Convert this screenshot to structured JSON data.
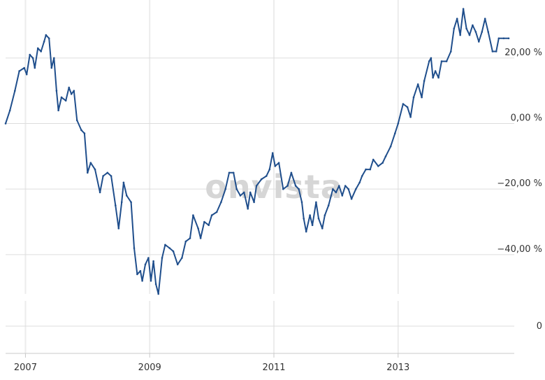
{
  "watermark": "onvista",
  "colors": {
    "line": "#1f4e8c",
    "grid": "#dddddd",
    "vgrid": "#ececec",
    "text": "#333333",
    "watermark": "#d6d6d6",
    "axis": "#c8c8c8"
  },
  "chart_data": [
    {
      "type": "line",
      "title": "",
      "xlabel": "",
      "ylabel": "",
      "xlim": [
        2006.68,
        2014.87
      ],
      "ylim": [
        -52,
        36
      ],
      "y_axis_position": "right",
      "grid": true,
      "x_ticks": [
        {
          "x": 2007,
          "label": "2007"
        },
        {
          "x": 2009,
          "label": "2009"
        },
        {
          "x": 2011,
          "label": "2011"
        },
        {
          "x": 2013,
          "label": "2013"
        }
      ],
      "y_ticks": [
        {
          "y": 20,
          "label": "20,00 %"
        },
        {
          "y": 0,
          "label": "0,00 %"
        },
        {
          "y": -20,
          "label": "−20,00 %"
        },
        {
          "y": -40,
          "label": "−40,00 %"
        }
      ],
      "series": [
        {
          "values": [
            [
              2006.68,
              0
            ],
            [
              2006.75,
              4
            ],
            [
              2006.83,
              10
            ],
            [
              2006.9,
              16
            ],
            [
              2006.98,
              17
            ],
            [
              2007.02,
              15
            ],
            [
              2007.07,
              21
            ],
            [
              2007.12,
              20
            ],
            [
              2007.15,
              17
            ],
            [
              2007.2,
              23
            ],
            [
              2007.25,
              22
            ],
            [
              2007.3,
              25
            ],
            [
              2007.33,
              27
            ],
            [
              2007.38,
              26
            ],
            [
              2007.42,
              17
            ],
            [
              2007.46,
              20
            ],
            [
              2007.5,
              10
            ],
            [
              2007.53,
              4
            ],
            [
              2007.58,
              8
            ],
            [
              2007.65,
              7
            ],
            [
              2007.7,
              11
            ],
            [
              2007.74,
              9
            ],
            [
              2007.78,
              10
            ],
            [
              2007.83,
              1
            ],
            [
              2007.9,
              -2
            ],
            [
              2007.95,
              -3
            ],
            [
              2008.0,
              -15
            ],
            [
              2008.05,
              -12
            ],
            [
              2008.12,
              -14
            ],
            [
              2008.2,
              -21
            ],
            [
              2008.25,
              -16
            ],
            [
              2008.32,
              -15
            ],
            [
              2008.38,
              -16
            ],
            [
              2008.45,
              -25
            ],
            [
              2008.5,
              -32
            ],
            [
              2008.55,
              -24
            ],
            [
              2008.58,
              -18
            ],
            [
              2008.63,
              -22
            ],
            [
              2008.7,
              -24
            ],
            [
              2008.75,
              -38
            ],
            [
              2008.8,
              -46
            ],
            [
              2008.85,
              -45
            ],
            [
              2008.88,
              -48
            ],
            [
              2008.93,
              -43
            ],
            [
              2008.98,
              -41
            ],
            [
              2009.02,
              -48
            ],
            [
              2009.06,
              -42
            ],
            [
              2009.1,
              -49
            ],
            [
              2009.14,
              -52
            ],
            [
              2009.2,
              -41
            ],
            [
              2009.25,
              -37
            ],
            [
              2009.32,
              -38
            ],
            [
              2009.38,
              -39
            ],
            [
              2009.45,
              -43
            ],
            [
              2009.52,
              -41
            ],
            [
              2009.58,
              -36
            ],
            [
              2009.65,
              -35
            ],
            [
              2009.7,
              -28
            ],
            [
              2009.78,
              -32
            ],
            [
              2009.82,
              -35
            ],
            [
              2009.88,
              -30
            ],
            [
              2009.95,
              -31
            ],
            [
              2010.0,
              -28
            ],
            [
              2010.08,
              -27
            ],
            [
              2010.15,
              -24
            ],
            [
              2010.22,
              -20
            ],
            [
              2010.28,
              -15
            ],
            [
              2010.35,
              -15
            ],
            [
              2010.4,
              -20
            ],
            [
              2010.46,
              -22
            ],
            [
              2010.52,
              -21
            ],
            [
              2010.58,
              -26
            ],
            [
              2010.62,
              -21
            ],
            [
              2010.68,
              -24
            ],
            [
              2010.72,
              -19
            ],
            [
              2010.8,
              -17
            ],
            [
              2010.88,
              -16
            ],
            [
              2010.93,
              -14
            ],
            [
              2010.98,
              -9
            ],
            [
              2011.02,
              -13
            ],
            [
              2011.08,
              -12
            ],
            [
              2011.15,
              -20
            ],
            [
              2011.22,
              -19
            ],
            [
              2011.28,
              -15
            ],
            [
              2011.35,
              -19
            ],
            [
              2011.4,
              -20
            ],
            [
              2011.45,
              -24
            ],
            [
              2011.48,
              -29
            ],
            [
              2011.52,
              -33
            ],
            [
              2011.58,
              -28
            ],
            [
              2011.62,
              -31
            ],
            [
              2011.68,
              -24
            ],
            [
              2011.72,
              -29
            ],
            [
              2011.78,
              -32
            ],
            [
              2011.82,
              -28
            ],
            [
              2011.88,
              -25
            ],
            [
              2011.95,
              -20
            ],
            [
              2012.0,
              -21
            ],
            [
              2012.05,
              -19
            ],
            [
              2012.1,
              -22
            ],
            [
              2012.15,
              -19
            ],
            [
              2012.2,
              -20
            ],
            [
              2012.25,
              -23
            ],
            [
              2012.32,
              -20
            ],
            [
              2012.38,
              -18
            ],
            [
              2012.42,
              -16
            ],
            [
              2012.48,
              -14
            ],
            [
              2012.55,
              -14
            ],
            [
              2012.6,
              -11
            ],
            [
              2012.68,
              -13
            ],
            [
              2012.75,
              -12
            ],
            [
              2012.8,
              -10
            ],
            [
              2012.88,
              -7
            ],
            [
              2012.95,
              -3
            ],
            [
              2013.0,
              0
            ],
            [
              2013.08,
              6
            ],
            [
              2013.15,
              5
            ],
            [
              2013.2,
              2
            ],
            [
              2013.25,
              8
            ],
            [
              2013.32,
              12
            ],
            [
              2013.38,
              8
            ],
            [
              2013.42,
              13
            ],
            [
              2013.5,
              19
            ],
            [
              2013.53,
              20
            ],
            [
              2013.56,
              14
            ],
            [
              2013.6,
              16
            ],
            [
              2013.65,
              14
            ],
            [
              2013.7,
              19
            ],
            [
              2013.78,
              19
            ],
            [
              2013.85,
              22
            ],
            [
              2013.9,
              29
            ],
            [
              2013.95,
              32
            ],
            [
              2014.0,
              27
            ],
            [
              2014.05,
              35
            ],
            [
              2014.1,
              29
            ],
            [
              2014.15,
              27
            ],
            [
              2014.2,
              30
            ],
            [
              2014.25,
              28
            ],
            [
              2014.3,
              25
            ],
            [
              2014.35,
              28
            ],
            [
              2014.4,
              32
            ],
            [
              2014.45,
              28
            ],
            [
              2014.52,
              22
            ],
            [
              2014.58,
              22
            ],
            [
              2014.62,
              26
            ],
            [
              2014.7,
              26
            ],
            [
              2014.78,
              26
            ]
          ]
        }
      ]
    },
    {
      "type": "line",
      "title": "",
      "xlabel": "",
      "ylabel": "",
      "xlim": [
        2006.68,
        2014.87
      ],
      "ylim": [
        -1,
        1
      ],
      "y_axis_position": "right",
      "grid": true,
      "y_ticks": [
        {
          "y": 0,
          "label": "0"
        }
      ],
      "series": []
    }
  ]
}
